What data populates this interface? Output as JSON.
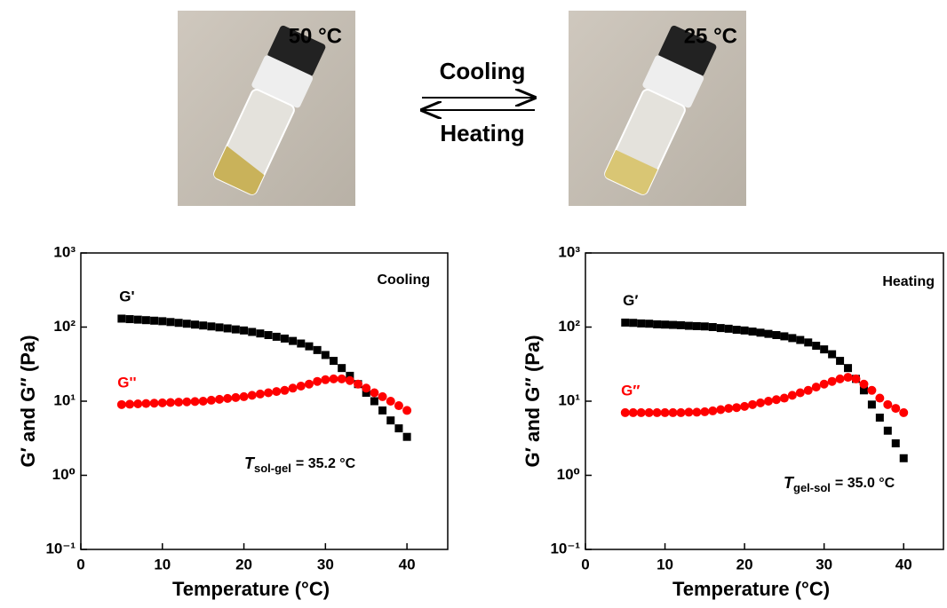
{
  "photos": [
    {
      "label": "50 °C"
    },
    {
      "label": "25 °C"
    }
  ],
  "process": {
    "forward": "Cooling",
    "backward": "Heating"
  },
  "chart_data": [
    {
      "type": "scatter",
      "scale": "log",
      "xlabel": "Temperature (°C)",
      "ylabel": "G′ and G″ (Pa)",
      "annotation": "Cooling",
      "transition": {
        "symbol": "T",
        "subscript": "sol-gel",
        "text": "= 35.2 °C"
      },
      "xlim": [
        0,
        45
      ],
      "xticks": [
        0,
        10,
        20,
        30,
        40
      ],
      "ylim": [
        0.1,
        1000
      ],
      "yticks": [
        {
          "value": 0.1,
          "label": "10⁻¹"
        },
        {
          "value": 1,
          "label": "10⁰"
        },
        {
          "value": 10,
          "label": "10¹"
        },
        {
          "value": 100,
          "label": "10²"
        },
        {
          "value": 1000,
          "label": "10³"
        }
      ],
      "x": [
        5,
        6,
        7,
        8,
        9,
        10,
        11,
        12,
        13,
        14,
        15,
        16,
        17,
        18,
        19,
        20,
        21,
        22,
        23,
        24,
        25,
        26,
        27,
        28,
        29,
        30,
        31,
        32,
        33,
        34,
        35,
        36,
        37,
        38,
        39,
        40
      ],
      "series": [
        {
          "name": "G'",
          "color": "#000000",
          "marker": "square",
          "values": [
            130,
            128,
            126,
            124,
            122,
            120,
            117,
            114,
            111,
            108,
            105,
            102,
            99,
            96,
            93,
            90,
            86,
            82,
            78,
            74,
            70,
            65,
            60,
            55,
            49,
            42,
            35,
            28,
            22,
            17,
            13,
            10,
            7.5,
            5.5,
            4.3,
            3.3
          ]
        },
        {
          "name": "G''",
          "color": "#ff0000",
          "marker": "circle",
          "values": [
            9,
            9.1,
            9.2,
            9.3,
            9.4,
            9.5,
            9.6,
            9.7,
            9.8,
            9.9,
            10,
            10.3,
            10.6,
            10.9,
            11.2,
            11.5,
            12,
            12.5,
            13,
            13.5,
            14,
            15,
            16,
            17,
            18.5,
            19.5,
            20,
            20,
            19,
            17,
            15,
            13,
            11.5,
            10,
            8.7,
            7.5
          ]
        }
      ]
    },
    {
      "type": "scatter",
      "scale": "log",
      "xlabel": "Temperature (°C)",
      "ylabel": "G′ and G″ (Pa)",
      "annotation": "Heating",
      "transition": {
        "symbol": "T",
        "subscript": "gel-sol",
        "text": "= 35.0 °C"
      },
      "xlim": [
        0,
        45
      ],
      "xticks": [
        0,
        10,
        20,
        30,
        40
      ],
      "ylim": [
        0.1,
        1000
      ],
      "yticks": [
        {
          "value": 0.1,
          "label": "10⁻¹"
        },
        {
          "value": 1,
          "label": "10⁰"
        },
        {
          "value": 10,
          "label": "10¹"
        },
        {
          "value": 100,
          "label": "10²"
        },
        {
          "value": 1000,
          "label": "10³"
        }
      ],
      "x": [
        5,
        6,
        7,
        8,
        9,
        10,
        11,
        12,
        13,
        14,
        15,
        16,
        17,
        18,
        19,
        20,
        21,
        22,
        23,
        24,
        25,
        26,
        27,
        28,
        29,
        30,
        31,
        32,
        33,
        34,
        35,
        36,
        37,
        38,
        39,
        40
      ],
      "series": [
        {
          "name": "G′",
          "color": "#000000",
          "marker": "square",
          "values": [
            115,
            114,
            112,
            111,
            109,
            108,
            107,
            106,
            104,
            103,
            102,
            100,
            97,
            95,
            92,
            90,
            87,
            84,
            81,
            78,
            75,
            71,
            67,
            62,
            56,
            50,
            43,
            35,
            28,
            20,
            14,
            9,
            6,
            4,
            2.7,
            1.7
          ]
        },
        {
          "name": "G″",
          "color": "#ff0000",
          "marker": "circle",
          "values": [
            7,
            7,
            7,
            7,
            7,
            7,
            7,
            7,
            7.1,
            7.1,
            7.2,
            7.4,
            7.7,
            8,
            8.2,
            8.5,
            9,
            9.5,
            10,
            10.5,
            11,
            12,
            13,
            14,
            15.5,
            17,
            18.5,
            20,
            21,
            20,
            17,
            14,
            11,
            9,
            8,
            7
          ]
        }
      ]
    }
  ]
}
